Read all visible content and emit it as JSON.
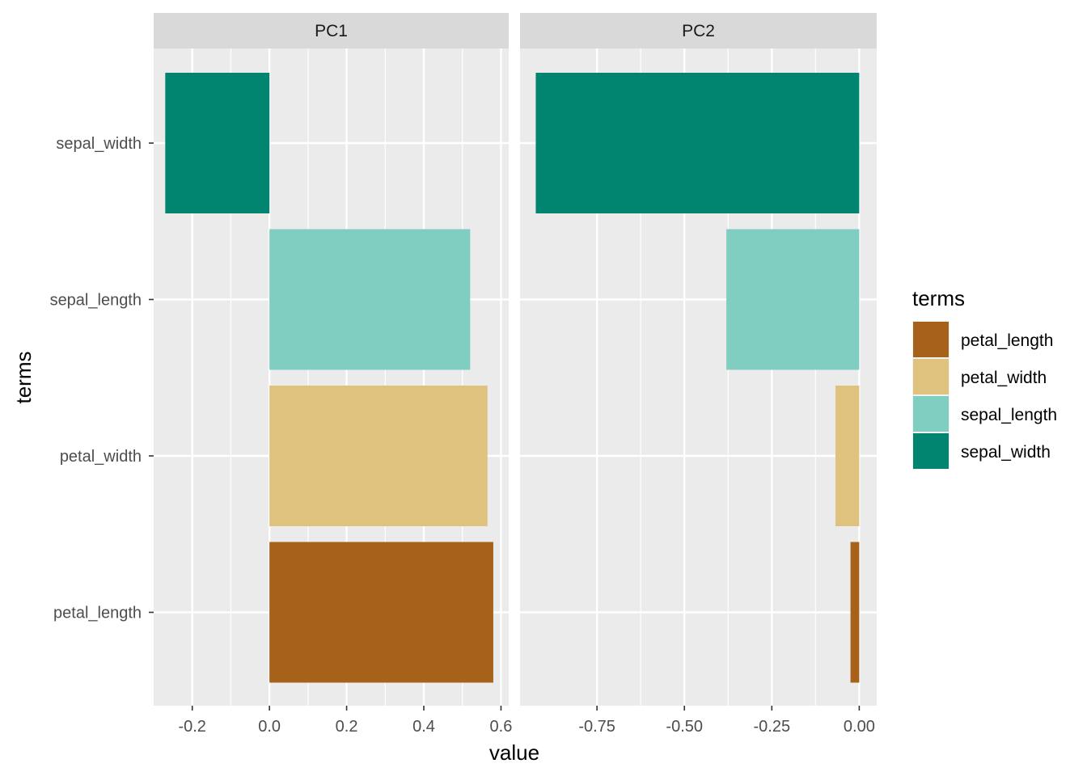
{
  "chart_data": {
    "type": "bar",
    "orientation": "horizontal",
    "facet_by": "component",
    "xlabel": "value",
    "ylabel": "terms",
    "categories": [
      "sepal_width",
      "sepal_length",
      "petal_width",
      "petal_length"
    ],
    "panels": [
      {
        "label": "PC1",
        "xlim": [
          -0.3,
          0.62
        ],
        "ticks": [
          -0.2,
          0.0,
          0.2,
          0.4,
          0.6
        ],
        "tick_labels": [
          "-0.2",
          "0.0",
          "0.2",
          "0.4",
          "0.6"
        ],
        "values": [
          -0.27,
          0.52,
          0.565,
          0.58
        ]
      },
      {
        "label": "PC2",
        "xlim": [
          -0.97,
          0.05
        ],
        "ticks": [
          -0.75,
          -0.5,
          -0.25,
          0.0
        ],
        "tick_labels": [
          "-0.75",
          "-0.50",
          "-0.25",
          "0.00"
        ],
        "values": [
          -0.925,
          -0.38,
          -0.068,
          -0.025
        ]
      }
    ],
    "legend": {
      "title": "terms",
      "position": "right",
      "items": [
        {
          "label": "petal_length",
          "color": "#A6611A"
        },
        {
          "label": "petal_width",
          "color": "#DFC27D"
        },
        {
          "label": "sepal_length",
          "color": "#80CDC1"
        },
        {
          "label": "sepal_width",
          "color": "#018571"
        }
      ]
    },
    "colors": {
      "sepal_width": "#018571",
      "sepal_length": "#80CDC1",
      "petal_width": "#DFC27D",
      "petal_length": "#A6611A"
    },
    "panel_background": "#EBEBEB",
    "strip_background": "#D9D9D9",
    "grid": true
  }
}
